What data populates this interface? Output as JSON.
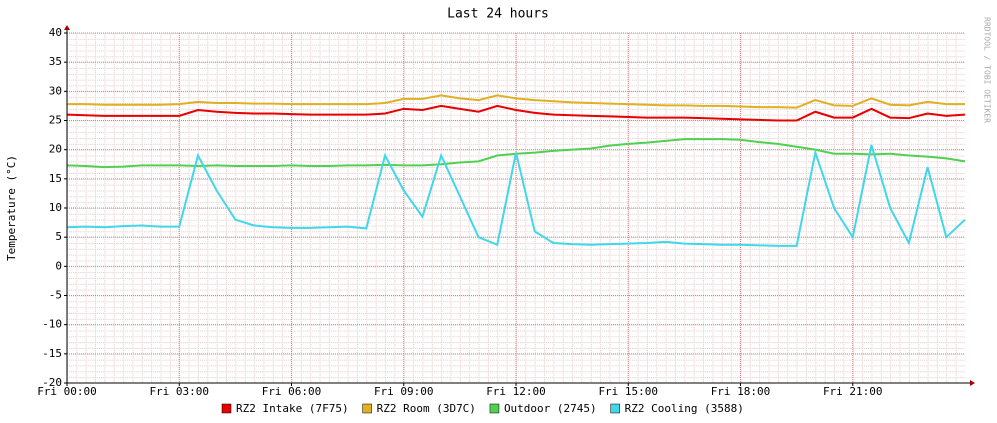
{
  "chart_data": {
    "type": "line",
    "title": "Last 24 hours",
    "y_label": "Temperature (°C)",
    "watermark": "RRDTOOL / TOBI OETIKER",
    "x": [
      0,
      0.5,
      1,
      1.5,
      2,
      2.5,
      3,
      3.5,
      4,
      4.5,
      5,
      5.5,
      6,
      6.5,
      7,
      7.5,
      8,
      8.5,
      9,
      9.5,
      10,
      10.5,
      11,
      11.5,
      12,
      12.5,
      13,
      13.5,
      14,
      14.5,
      15,
      15.5,
      16,
      16.5,
      17,
      17.5,
      18,
      18.5,
      19,
      19.5,
      20,
      20.5,
      21,
      21.5,
      22,
      22.5,
      23,
      23.5,
      24
    ],
    "xlim": [
      0,
      24
    ],
    "xticks": [
      {
        "value": 0,
        "label": "Fri 00:00"
      },
      {
        "value": 3,
        "label": "Fri 03:00"
      },
      {
        "value": 6,
        "label": "Fri 06:00"
      },
      {
        "value": 9,
        "label": "Fri 09:00"
      },
      {
        "value": 12,
        "label": "Fri 12:00"
      },
      {
        "value": 15,
        "label": "Fri 15:00"
      },
      {
        "value": 18,
        "label": "Fri 18:00"
      },
      {
        "value": 21,
        "label": "Fri 21:00"
      }
    ],
    "ylim": [
      -20,
      40
    ],
    "yticks": [
      -20,
      -15,
      -10,
      -5,
      0,
      5,
      10,
      15,
      20,
      25,
      30,
      35,
      40
    ],
    "grid": true,
    "series": [
      {
        "name": "RZ2 Intake (7F75)",
        "color": "#e80000",
        "values": [
          26,
          25.9,
          25.8,
          25.8,
          25.8,
          25.8,
          25.8,
          26.8,
          26.5,
          26.3,
          26.2,
          26.2,
          26.1,
          26,
          26,
          26,
          26,
          26.2,
          27,
          26.8,
          27.5,
          27,
          26.5,
          27.5,
          26.8,
          26.3,
          26,
          25.9,
          25.8,
          25.7,
          25.6,
          25.5,
          25.5,
          25.5,
          25.4,
          25.3,
          25.2,
          25.1,
          25,
          25,
          26.5,
          25.5,
          25.5,
          27,
          25.5,
          25.4,
          26.2,
          25.8,
          26
        ]
      },
      {
        "name": "RZ2 Room (3D7C)",
        "color": "#e0b020",
        "values": [
          27.8,
          27.8,
          27.7,
          27.7,
          27.7,
          27.7,
          27.8,
          28.2,
          28,
          28,
          27.9,
          27.9,
          27.8,
          27.8,
          27.8,
          27.8,
          27.8,
          28,
          28.7,
          28.7,
          29.3,
          28.8,
          28.5,
          29.3,
          28.8,
          28.5,
          28.3,
          28.1,
          28,
          27.9,
          27.8,
          27.7,
          27.6,
          27.6,
          27.5,
          27.5,
          27.4,
          27.3,
          27.3,
          27.2,
          28.5,
          27.6,
          27.5,
          28.8,
          27.7,
          27.6,
          28.2,
          27.8,
          27.8
        ]
      },
      {
        "name": "Outdoor (2745)",
        "color": "#50d050",
        "values": [
          17.3,
          17.2,
          17,
          17.1,
          17.3,
          17.3,
          17.3,
          17.2,
          17.3,
          17.2,
          17.2,
          17.2,
          17.3,
          17.2,
          17.2,
          17.3,
          17.3,
          17.4,
          17.3,
          17.3,
          17.5,
          17.8,
          18,
          19,
          19.3,
          19.5,
          19.8,
          20,
          20.2,
          20.7,
          21,
          21.2,
          21.5,
          21.8,
          21.8,
          21.8,
          21.7,
          21.3,
          21,
          20.5,
          20,
          19.3,
          19.3,
          19.2,
          19.3,
          19,
          18.8,
          18.5,
          18
        ]
      },
      {
        "name": "RZ2 Cooling (3588)",
        "color": "#40d8e8",
        "values": [
          6.7,
          6.8,
          6.7,
          6.9,
          7,
          6.8,
          6.8,
          19,
          13,
          8,
          7,
          6.7,
          6.6,
          6.6,
          6.7,
          6.8,
          6.5,
          19,
          13,
          8.5,
          19,
          12,
          5,
          3.7,
          19.5,
          6,
          4,
          3.8,
          3.7,
          3.8,
          3.9,
          4,
          4.2,
          3.9,
          3.8,
          3.7,
          3.7,
          3.6,
          3.5,
          3.5,
          19.5,
          10,
          5,
          20.8,
          10,
          4,
          17,
          5,
          8
        ]
      }
    ]
  }
}
